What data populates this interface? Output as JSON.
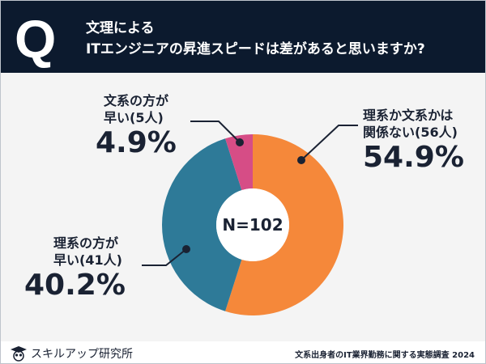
{
  "header": {
    "badge": "Q",
    "title_line1": "文理による",
    "title_line2": "ITエンジニアの昇進スピードは差があると思いますか?"
  },
  "chart_data": {
    "type": "pie",
    "donut": true,
    "center_label": "N=102",
    "slices": [
      {
        "label_line1": "理系か文系かは",
        "label_line2": "関係ない(56人)",
        "count": 56,
        "percent_label": "54.9%",
        "value": 54.9,
        "color": "#f5883a"
      },
      {
        "label_line1": "理系の方が",
        "label_line2": "早い(41人)",
        "count": 41,
        "percent_label": "40.2%",
        "value": 40.2,
        "color": "#2e7a98"
      },
      {
        "label_line1": "文系の方が",
        "label_line2": "早い(5人)",
        "count": 5,
        "percent_label": "4.9%",
        "value": 4.9,
        "color": "#d64d86"
      }
    ]
  },
  "footer": {
    "logo_text": "スキルアップ研究所",
    "source": "文系出身者のIT業界勤務に関する実態調査 2024"
  }
}
